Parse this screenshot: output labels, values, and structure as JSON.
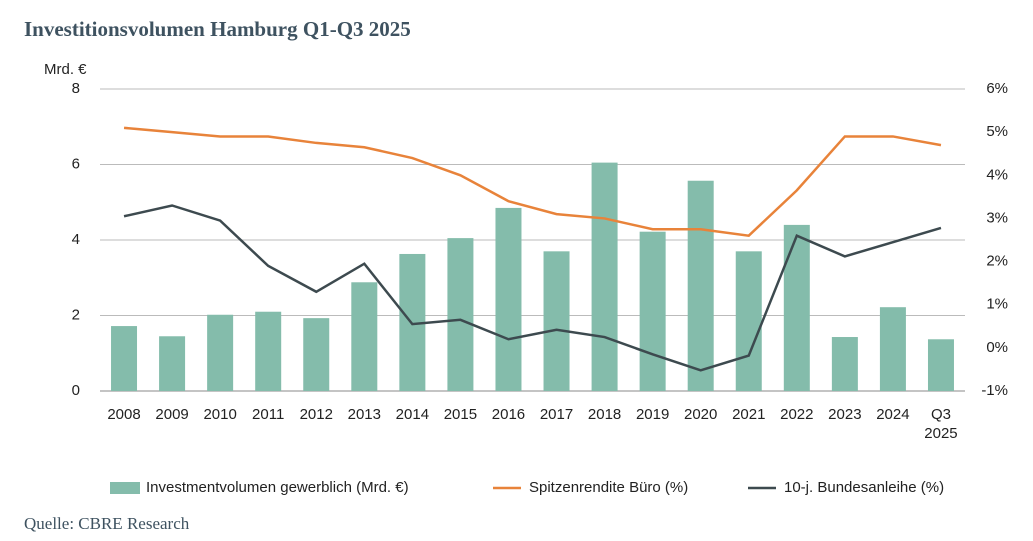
{
  "chart_data": {
    "type": "bar",
    "title": "Investitionsvolumen Hamburg Q1-Q3 2025",
    "y_label": "Mrd. €",
    "source": "Quelle: CBRE Research",
    "categories": [
      "2008",
      "2009",
      "2010",
      "2011",
      "2012",
      "2013",
      "2014",
      "2015",
      "2016",
      "2017",
      "2018",
      "2019",
      "2020",
      "2021",
      "2022",
      "2023",
      "2024",
      "Q3 2025"
    ],
    "series": [
      {
        "name": "Investmentvolumen gewerblich (Mrd. €)",
        "type": "bar",
        "color": "#84bcab",
        "values": [
          1.72,
          1.45,
          2.02,
          2.1,
          1.93,
          2.88,
          3.63,
          4.05,
          4.85,
          3.7,
          6.05,
          4.22,
          5.57,
          3.7,
          4.4,
          1.43,
          2.22,
          1.37
        ]
      },
      {
        "name": "Spitzenrendite Büro (%)",
        "type": "line",
        "axis": "y2",
        "color": "#e8833a",
        "values": [
          5.1,
          5.0,
          4.9,
          4.9,
          4.75,
          4.65,
          4.4,
          4.0,
          3.4,
          3.1,
          3.0,
          2.75,
          2.75,
          2.6,
          3.65,
          4.9,
          4.9,
          4.7
        ]
      },
      {
        "name": "10-j. Bundesanleihe (%)",
        "type": "line",
        "axis": "y2",
        "color": "#3d4a4f",
        "values": [
          3.05,
          3.3,
          2.95,
          1.9,
          1.3,
          1.95,
          0.55,
          0.65,
          0.2,
          0.42,
          0.25,
          -0.15,
          -0.52,
          -0.18,
          2.6,
          2.12,
          2.45,
          2.78
        ]
      }
    ],
    "ylim": [
      0,
      8
    ],
    "yticks": [
      0,
      2,
      4,
      6,
      8
    ],
    "y2lim": [
      -1,
      6
    ],
    "y2ticks": [
      {
        "value": -1,
        "label": "-1%"
      },
      {
        "value": 0,
        "label": "0%"
      },
      {
        "value": 1,
        "label": "1%"
      },
      {
        "value": 2,
        "label": "2%"
      },
      {
        "value": 3,
        "label": "3%"
      },
      {
        "value": 4,
        "label": "4%"
      },
      {
        "value": 5,
        "label": "5%"
      },
      {
        "value": 6,
        "label": "6%"
      }
    ],
    "grid": true
  }
}
